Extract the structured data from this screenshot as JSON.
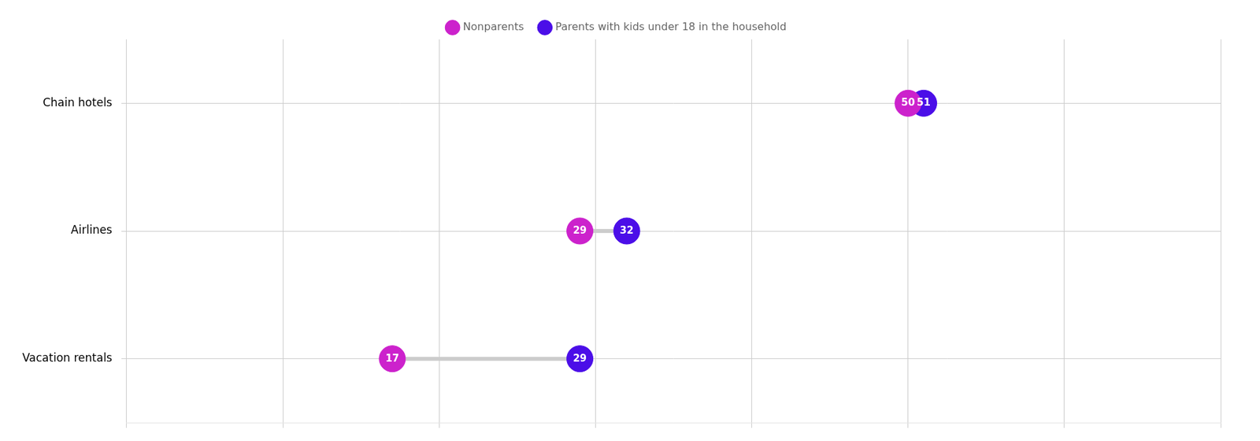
{
  "chart_data": {
    "type": "dumbbell",
    "orientation": "horizontal",
    "categories": [
      "Chain hotels",
      "Airlines",
      "Vacation rentals"
    ],
    "series": [
      {
        "name": "Parents with kids under 18 in the household",
        "color": "#4B0EE8",
        "values": [
          51,
          32,
          29
        ]
      },
      {
        "name": "Nonparents",
        "color": "#CC22CC",
        "values": [
          50,
          29,
          17
        ]
      }
    ],
    "xlim": [
      0,
      70
    ],
    "xticks": [
      0,
      10,
      20,
      30,
      40,
      50,
      60,
      70
    ],
    "grid": true,
    "legend": "top",
    "data_labels": true,
    "tick_labels": "y"
  }
}
